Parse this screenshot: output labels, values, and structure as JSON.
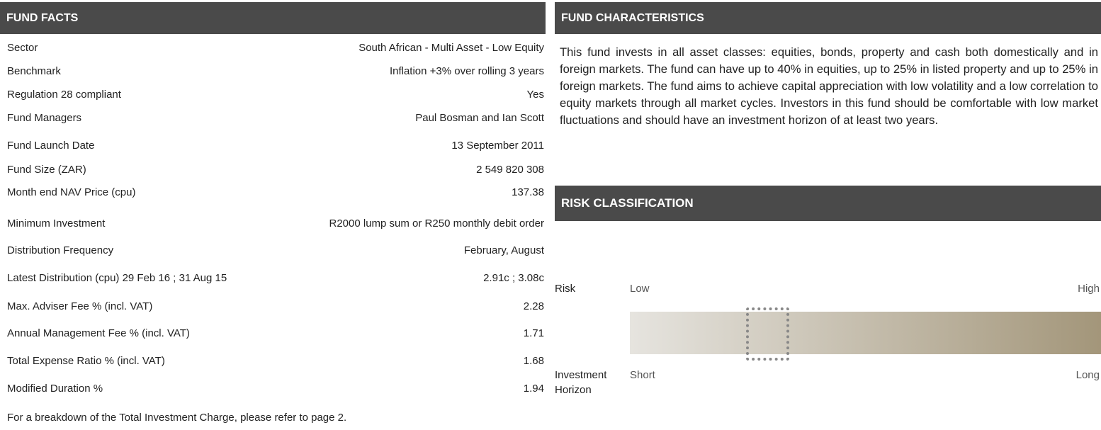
{
  "fund_facts": {
    "title": "FUND FACTS",
    "rows": [
      [
        "Sector",
        "South African - Multi Asset - Low Equity"
      ],
      [
        "Benchmark",
        "Inflation +3%  over rolling 3 years"
      ],
      [
        "Regulation 28 compliant",
        "Yes"
      ],
      [
        "Fund Managers",
        "Paul Bosman and Ian Scott"
      ],
      [
        "Fund Launch Date",
        "13 September 2011"
      ],
      [
        "Fund Size (ZAR)",
        "2 549 820 308"
      ],
      [
        "Month end NAV Price (cpu)",
        "137.38"
      ],
      [
        "Minimum Investment",
        "R2000 lump sum or  R250 monthly debit order"
      ],
      [
        "Distribution Frequency",
        "February, August"
      ],
      [
        "Latest Distribution (cpu)  29 Feb 16 ; 31 Aug 15",
        "2.91c ; 3.08c"
      ],
      [
        "Max. Adviser Fee % (incl. VAT)",
        "2.28"
      ],
      [
        "Annual Management Fee % (incl. VAT)",
        "1.71"
      ],
      [
        "Total Expense Ratio % (incl. VAT)",
        "1.68"
      ],
      [
        "Modified Duration %",
        "1.94"
      ]
    ],
    "footnote": "For a breakdown of the Total Investment Charge, please refer to page 2."
  },
  "fund_characteristics": {
    "title": "FUND CHARACTERISTICS",
    "text": "This fund invests in all asset classes: equities, bonds, property and cash both domestically and in foreign markets. The fund can have up to 40% in equities, up to 25% in listed property and up to 25% in foreign markets. The fund aims to achieve capital appreciation with low volatility and a low correlation to equity markets through all market cycles. Investors in this fund should be comfortable with low market fluctuations and should have an investment horizon of at least two years."
  },
  "risk_classification": {
    "title": "RISK CLASSIFICATION",
    "risk_label": "Risk",
    "risk_low": "Low",
    "risk_high": "High",
    "horizon_label_1": "Investment",
    "horizon_label_2": "Horizon",
    "horizon_short": "Short",
    "horizon_long": "Long"
  }
}
